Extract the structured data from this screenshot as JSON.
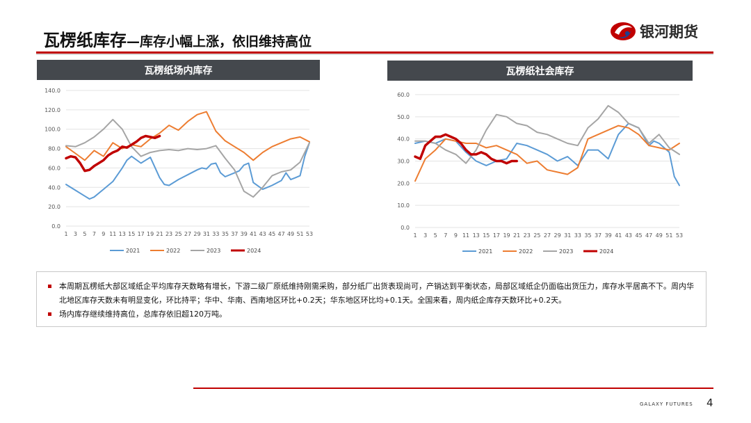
{
  "header": {
    "title_main": "瓦楞纸库存",
    "title_sub": "—库存小幅上涨，依旧维持高位",
    "brand_name": "银河期货",
    "accent_color": "#c00000"
  },
  "chart_data": [
    {
      "type": "line",
      "title": "瓦楞纸场内库存",
      "x": [
        1,
        3,
        5,
        7,
        9,
        11,
        13,
        15,
        17,
        19,
        21,
        23,
        25,
        27,
        29,
        31,
        33,
        35,
        37,
        39,
        41,
        43,
        45,
        47,
        49,
        51,
        53
      ],
      "x_tick_labels": [
        "1",
        "3",
        "5",
        "7",
        "9",
        "11",
        "13",
        "15",
        "17",
        "19",
        "21",
        "23",
        "25",
        "27",
        "29",
        "31",
        "33",
        "35",
        "37",
        "39",
        "41",
        "43",
        "45",
        "47",
        "49",
        "51",
        "53"
      ],
      "y_tick_labels": [
        "0.0",
        "20.0",
        "40.0",
        "60.0",
        "80.0",
        "100.0",
        "120.0",
        "140.0"
      ],
      "ylim": [
        0,
        140
      ],
      "grid": "horizontal",
      "legend": "bottom",
      "series": [
        {
          "name": "2021",
          "color": "#5b9bd5",
          "width": 2,
          "x": [
            1,
            3,
            5,
            6,
            7,
            9,
            11,
            13,
            14,
            15,
            17,
            18,
            19,
            21,
            22,
            23,
            25,
            27,
            29,
            30,
            31,
            32,
            33,
            34,
            35,
            37,
            38,
            39,
            40,
            41,
            43,
            45,
            47,
            48,
            49,
            50,
            51,
            52,
            53
          ],
          "y": [
            43,
            37,
            31,
            28,
            30,
            38,
            46,
            60,
            68,
            72,
            65,
            68,
            71,
            50,
            43,
            42,
            48,
            53,
            58,
            60,
            59,
            64,
            65,
            55,
            51,
            55,
            57,
            63,
            65,
            45,
            38,
            42,
            47,
            55,
            48,
            50,
            52,
            72,
            86
          ]
        },
        {
          "name": "2022",
          "color": "#ed7d31",
          "width": 2,
          "x": [
            1,
            3,
            5,
            7,
            9,
            11,
            13,
            15,
            17,
            19,
            21,
            23,
            25,
            27,
            29,
            31,
            33,
            35,
            37,
            39,
            41,
            43,
            45,
            47,
            49,
            51,
            53
          ],
          "y": [
            82,
            75,
            68,
            78,
            72,
            86,
            80,
            84,
            82,
            90,
            96,
            104,
            99,
            108,
            115,
            118,
            98,
            88,
            82,
            76,
            68,
            76,
            82,
            86,
            90,
            92,
            87
          ]
        },
        {
          "name": "2023",
          "color": "#a5a5a5",
          "width": 2,
          "x": [
            1,
            3,
            5,
            7,
            9,
            11,
            13,
            15,
            17,
            19,
            21,
            23,
            25,
            27,
            29,
            31,
            33,
            35,
            37,
            39,
            41,
            43,
            45,
            47,
            49,
            51,
            53
          ],
          "y": [
            83,
            82,
            86,
            92,
            100,
            110,
            100,
            82,
            72,
            76,
            78,
            79,
            78,
            80,
            79,
            80,
            83,
            70,
            58,
            36,
            30,
            40,
            52,
            56,
            58,
            66,
            86
          ]
        },
        {
          "name": "2024",
          "color": "#c00000",
          "width": 3.5,
          "x": [
            1,
            2,
            3,
            4,
            5,
            6,
            7,
            8,
            9,
            10,
            11,
            12,
            13,
            14,
            15,
            16,
            17,
            18,
            19,
            20,
            21
          ],
          "y": [
            70,
            72,
            71,
            65,
            57,
            58,
            62,
            65,
            68,
            73,
            76,
            78,
            82,
            81,
            84,
            87,
            91,
            93,
            92,
            91,
            93
          ]
        }
      ]
    },
    {
      "type": "line",
      "title": "瓦楞纸社会库存",
      "x": [
        1,
        3,
        5,
        7,
        9,
        11,
        13,
        15,
        17,
        19,
        21,
        23,
        25,
        27,
        29,
        31,
        33,
        35,
        37,
        39,
        41,
        43,
        45,
        47,
        49,
        51,
        53
      ],
      "x_tick_labels": [
        "1",
        "3",
        "5",
        "7",
        "9",
        "11",
        "13",
        "15",
        "17",
        "19",
        "21",
        "23",
        "25",
        "27",
        "29",
        "31",
        "33",
        "35",
        "37",
        "39",
        "41",
        "43",
        "45",
        "47",
        "49",
        "51",
        "53"
      ],
      "y_tick_labels": [
        "0.0",
        "10.0",
        "20.0",
        "30.0",
        "40.0",
        "50.0",
        "60.0"
      ],
      "ylim": [
        0,
        60
      ],
      "grid": "horizontal",
      "legend": "bottom",
      "series": [
        {
          "name": "2021",
          "color": "#5b9bd5",
          "width": 2,
          "x": [
            1,
            3,
            5,
            7,
            9,
            11,
            13,
            15,
            17,
            19,
            21,
            23,
            25,
            27,
            29,
            31,
            33,
            35,
            37,
            39,
            41,
            43,
            45,
            47,
            48,
            49,
            51,
            52,
            53
          ],
          "y": [
            38,
            39,
            38,
            40,
            39,
            34,
            30,
            28,
            30,
            31,
            38,
            37,
            35,
            33,
            30,
            32,
            28,
            35,
            35,
            31,
            42,
            47,
            45,
            37,
            39,
            38,
            34,
            23,
            19
          ]
        },
        {
          "name": "2022",
          "color": "#ed7d31",
          "width": 2,
          "x": [
            1,
            3,
            5,
            7,
            9,
            11,
            13,
            15,
            17,
            19,
            21,
            23,
            25,
            27,
            29,
            31,
            33,
            35,
            37,
            39,
            41,
            43,
            45,
            47,
            49,
            51,
            53
          ],
          "y": [
            21,
            31,
            35,
            40,
            39,
            38,
            38,
            36,
            37,
            35,
            33,
            29,
            30,
            26,
            25,
            24,
            27,
            40,
            42,
            44,
            46,
            45,
            42,
            37,
            36,
            35,
            38
          ]
        },
        {
          "name": "2023",
          "color": "#a5a5a5",
          "width": 2,
          "x": [
            1,
            3,
            5,
            7,
            9,
            11,
            13,
            15,
            17,
            19,
            21,
            23,
            25,
            27,
            29,
            31,
            33,
            35,
            37,
            39,
            41,
            43,
            45,
            47,
            49,
            51,
            53
          ],
          "y": [
            39,
            39,
            38,
            35,
            33,
            29,
            35,
            44,
            51,
            50,
            47,
            46,
            43,
            42,
            40,
            38,
            37,
            45,
            49,
            55,
            52,
            47,
            45,
            38,
            42,
            36,
            33
          ]
        },
        {
          "name": "2024",
          "color": "#c00000",
          "width": 3.5,
          "x": [
            1,
            2,
            3,
            4,
            5,
            6,
            7,
            8,
            9,
            10,
            11,
            12,
            13,
            14,
            15,
            16,
            17,
            18,
            19,
            20,
            21
          ],
          "y": [
            32,
            31,
            37,
            39,
            41,
            41,
            42,
            41,
            40,
            38,
            35,
            33,
            33,
            34,
            33,
            31,
            30,
            30,
            29,
            30,
            30
          ]
        }
      ]
    }
  ],
  "notes": [
    "本周期瓦楞纸大部区域纸企平均库存天数略有增长，下游二级厂原纸维持刚需采购，部分纸厂出货表现尚可，产销达到平衡状态，局部区域纸企仍面临出货压力，库存水平居高不下。周内华北地区库存天数未有明显变化，环比持平；华中、华南、西南地区环比+0.2天；华东地区环比均+0.1天。全国来看，周内纸企库存天数环比+0.2天。",
    "场内库存继续维持高位，总库存依旧超120万吨。"
  ],
  "footer": {
    "brand_en": "GALAXY FUTURES",
    "page_number": "4"
  }
}
